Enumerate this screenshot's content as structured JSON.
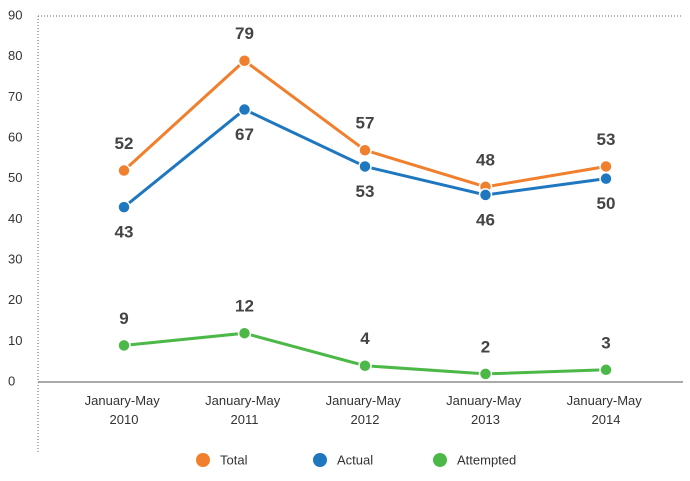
{
  "chart_data": {
    "type": "line",
    "categories": [
      "January-May 2010",
      "January-May 2011",
      "January-May 2012",
      "January-May 2013",
      "January-May 2014"
    ],
    "series": [
      {
        "name": "Total",
        "color": "#f07f2e",
        "values": [
          52,
          79,
          57,
          48,
          53
        ]
      },
      {
        "name": "Actual",
        "color": "#1f77c0",
        "values": [
          43,
          67,
          53,
          46,
          50
        ]
      },
      {
        "name": "Attempted",
        "color": "#4cb848",
        "values": [
          9,
          12,
          4,
          2,
          3
        ]
      }
    ],
    "ylim": [
      0,
      90
    ],
    "yticks": [
      0,
      10,
      20,
      30,
      40,
      50,
      60,
      70,
      80,
      90
    ],
    "grid": false
  }
}
